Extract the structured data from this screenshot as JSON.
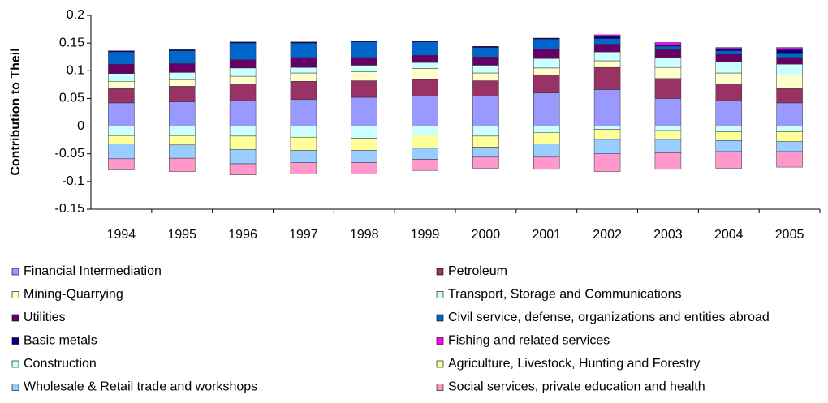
{
  "chart_data": {
    "type": "stacked_bar",
    "y_label": "Contribution to Theil",
    "categories": [
      "1994",
      "1995",
      "1996",
      "1997",
      "1998",
      "1999",
      "2000",
      "2001",
      "2002",
      "2003",
      "2004",
      "2005"
    ],
    "ylim": [
      -0.15,
      0.2
    ],
    "yticks": [
      0.2,
      0.15,
      0.1,
      0.05,
      0,
      -0.05,
      -0.1,
      -0.15
    ],
    "grid": false,
    "series": [
      {
        "name": "Financial Intermediation",
        "color": "#9999ff",
        "values": [
          0.042,
          0.044,
          0.046,
          0.048,
          0.052,
          0.054,
          0.054,
          0.06,
          0.066,
          0.05,
          0.046,
          0.042
        ]
      },
      {
        "name": "Petroleum",
        "color": "#993366",
        "values": [
          0.026,
          0.028,
          0.03,
          0.033,
          0.03,
          0.03,
          0.028,
          0.032,
          0.04,
          0.036,
          0.03,
          0.026
        ]
      },
      {
        "name": "Mining-Quarrying",
        "color": "#ffffcc",
        "values": [
          0.013,
          0.012,
          0.014,
          0.015,
          0.016,
          0.02,
          0.014,
          0.013,
          0.012,
          0.02,
          0.02,
          0.024
        ]
      },
      {
        "name": "Transport, Storage and Communications",
        "color": "#ccffff",
        "values": [
          0.014,
          0.013,
          0.015,
          0.01,
          0.012,
          0.011,
          0.014,
          0.017,
          0.016,
          0.018,
          0.02,
          0.02
        ]
      },
      {
        "name": "Utilities",
        "color": "#660066",
        "values": [
          0.017,
          0.016,
          0.015,
          0.018,
          0.014,
          0.013,
          0.015,
          0.017,
          0.014,
          0.014,
          0.014,
          0.012
        ]
      },
      {
        "name": "Civil service, defense, organizations and entities abroad",
        "color": "#0066cc",
        "values": [
          0.022,
          0.023,
          0.03,
          0.026,
          0.028,
          0.024,
          0.017,
          0.018,
          0.01,
          0.006,
          0.006,
          0.008
        ]
      },
      {
        "name": "Basic metals",
        "color": "#000080",
        "values": [
          0.002,
          0.002,
          0.002,
          0.002,
          0.002,
          0.002,
          0.002,
          0.002,
          0.004,
          0.002,
          0.004,
          0.006
        ]
      },
      {
        "name": "Fishing and related services",
        "color": "#ff00ff",
        "values": [
          0,
          0,
          0,
          0,
          0,
          0,
          0,
          0,
          0.003,
          0.005,
          0.002,
          0.004
        ]
      },
      {
        "name": "Construction",
        "color": "#ccffff",
        "values": [
          -0.017,
          -0.017,
          -0.018,
          -0.02,
          -0.022,
          -0.016,
          -0.018,
          -0.012,
          -0.006,
          -0.008,
          -0.01,
          -0.01
        ]
      },
      {
        "name": "Agriculture, Livestock, Hunting and Forestry",
        "color": "#ffff99",
        "values": [
          -0.015,
          -0.017,
          -0.024,
          -0.024,
          -0.022,
          -0.024,
          -0.02,
          -0.02,
          -0.018,
          -0.016,
          -0.016,
          -0.018
        ]
      },
      {
        "name": "Wholesale & Retail trade and workshops",
        "color": "#99ccff",
        "values": [
          -0.027,
          -0.024,
          -0.026,
          -0.022,
          -0.022,
          -0.02,
          -0.018,
          -0.024,
          -0.026,
          -0.024,
          -0.02,
          -0.018
        ]
      },
      {
        "name": "Social services, private education and health",
        "color": "#ff99cc",
        "values": [
          -0.02,
          -0.024,
          -0.02,
          -0.02,
          -0.02,
          -0.02,
          -0.02,
          -0.022,
          -0.032,
          -0.03,
          -0.03,
          -0.028
        ]
      }
    ]
  }
}
